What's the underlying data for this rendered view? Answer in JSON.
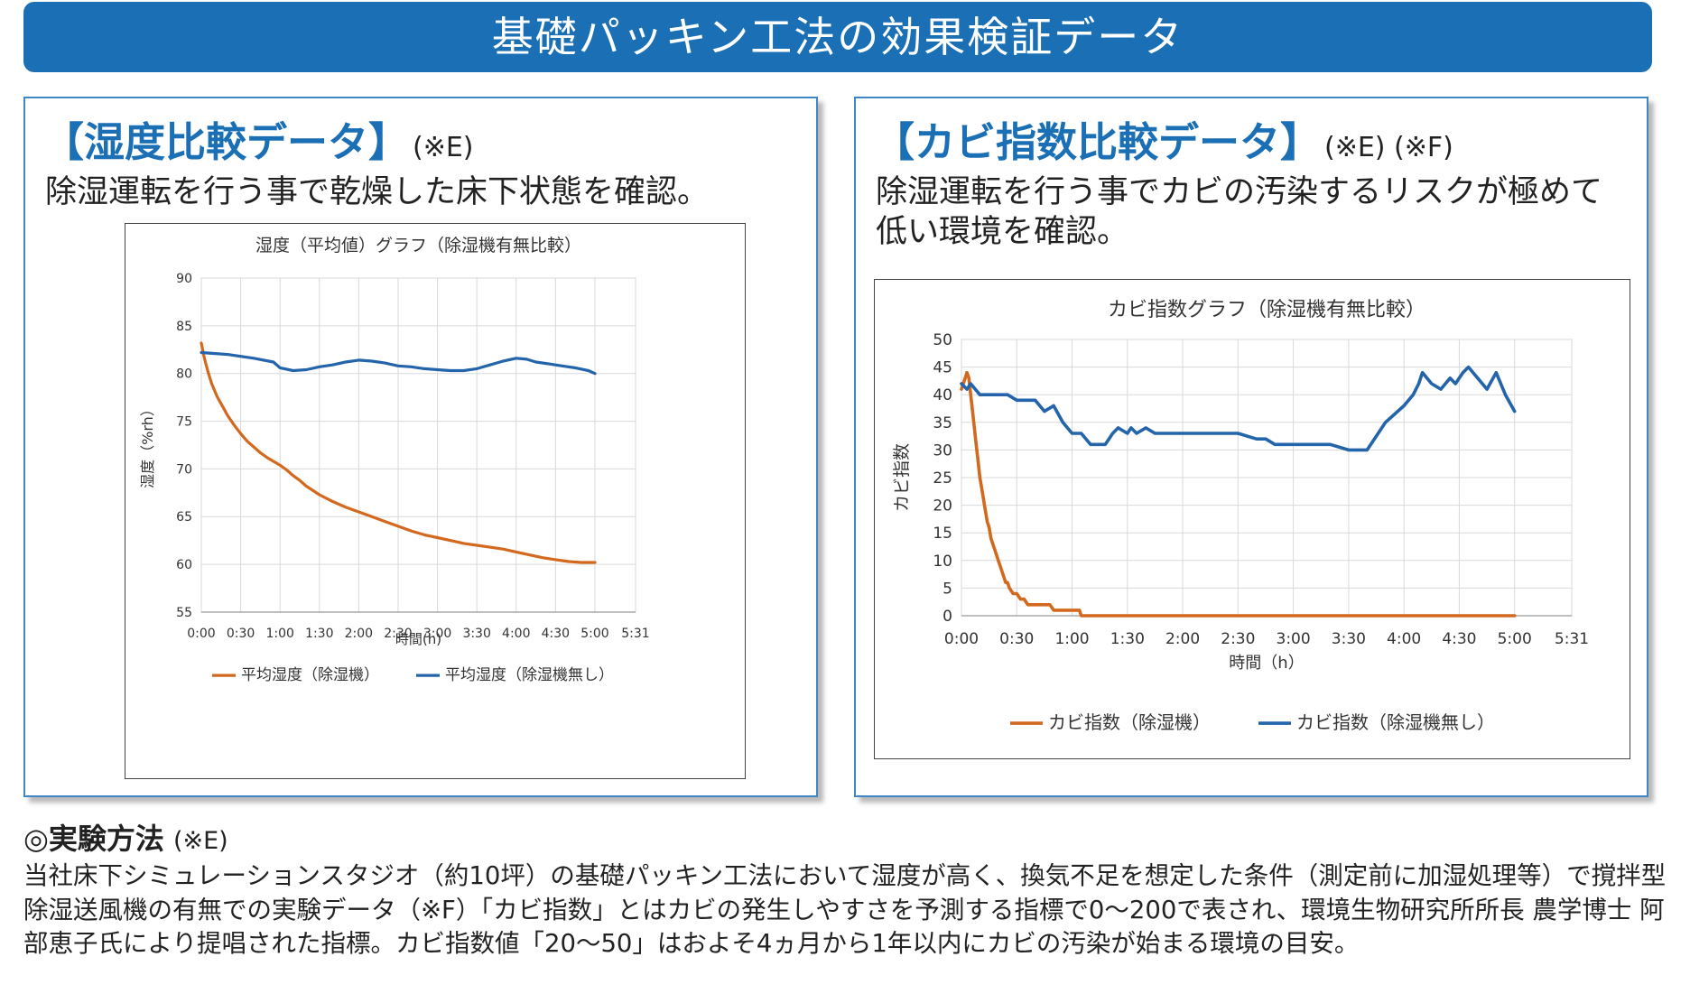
{
  "banner": {
    "title": "基礎パッキン工法の効果検証データ"
  },
  "colors": {
    "accent": "#1a6fb5",
    "orange": "#d2691e",
    "blue": "#2364aa",
    "grid": "#d9d9d9"
  },
  "left_panel": {
    "title": "【湿度比較データ】",
    "note": "(※E)",
    "description": "除湿運転を行う事で乾燥した床下状態を確認。"
  },
  "right_panel": {
    "title": "【カビ指数比較データ】",
    "note": "(※E) (※F)",
    "description": "除湿運転を行う事でカビの汚染するリスクが極めて低い環境を確認。"
  },
  "chart_data": [
    {
      "type": "line",
      "title": "湿度（平均値）グラフ（除湿機有無比較）",
      "xlabel": "時間(h)",
      "ylabel": "湿度（%rh）",
      "ylim": [
        55,
        90
      ],
      "yticks": [
        "55",
        "60",
        "65",
        "70",
        "75",
        "80",
        "85",
        "90"
      ],
      "xlim": [
        0,
        331
      ],
      "xticks": [
        "0:00",
        "0:30",
        "1:00",
        "1:30",
        "2:00",
        "2:30",
        "3:00",
        "3:30",
        "4:00",
        "4:30",
        "5:00",
        "5:31"
      ],
      "xtick_values": [
        0,
        30,
        60,
        90,
        120,
        150,
        180,
        210,
        240,
        270,
        300,
        331
      ],
      "x_unit": "minutes",
      "legend_position": "bottom",
      "series": [
        {
          "name": "平均湿度（除湿機）",
          "color": "#d2691e",
          "x": [
            0,
            2,
            5,
            8,
            12,
            16,
            20,
            25,
            30,
            35,
            40,
            45,
            50,
            55,
            60,
            65,
            70,
            75,
            80,
            90,
            100,
            110,
            120,
            130,
            140,
            150,
            160,
            170,
            180,
            190,
            200,
            210,
            220,
            230,
            240,
            250,
            260,
            270,
            280,
            290,
            300
          ],
          "y": [
            83.2,
            81.8,
            80.2,
            78.9,
            77.6,
            76.6,
            75.6,
            74.6,
            73.7,
            72.9,
            72.3,
            71.7,
            71.2,
            70.8,
            70.4,
            69.9,
            69.3,
            68.8,
            68.2,
            67.3,
            66.6,
            66.0,
            65.5,
            65.0,
            64.5,
            64.0,
            63.5,
            63.1,
            62.8,
            62.5,
            62.2,
            62.0,
            61.8,
            61.6,
            61.3,
            61.0,
            60.7,
            60.5,
            60.3,
            60.2,
            60.2
          ]
        },
        {
          "name": "平均湿度（除湿機無し）",
          "color": "#2364aa",
          "x": [
            0,
            20,
            40,
            55,
            60,
            70,
            80,
            90,
            100,
            110,
            120,
            130,
            140,
            150,
            160,
            170,
            180,
            190,
            200,
            210,
            220,
            230,
            240,
            248,
            255,
            265,
            275,
            285,
            295,
            300
          ],
          "y": [
            82.2,
            82.0,
            81.6,
            81.2,
            80.6,
            80.3,
            80.4,
            80.7,
            80.9,
            81.2,
            81.4,
            81.3,
            81.1,
            80.8,
            80.7,
            80.5,
            80.4,
            80.3,
            80.3,
            80.5,
            80.9,
            81.3,
            81.6,
            81.5,
            81.2,
            81.0,
            80.8,
            80.6,
            80.3,
            80.0
          ]
        }
      ]
    },
    {
      "type": "line",
      "title": "カビ指数グラフ（除湿機有無比較）",
      "xlabel": "時間（h）",
      "ylabel": "カビ指数",
      "ylim": [
        0,
        50
      ],
      "yticks": [
        "0",
        "5",
        "10",
        "15",
        "20",
        "25",
        "30",
        "35",
        "40",
        "45",
        "50"
      ],
      "xlim": [
        0,
        331
      ],
      "xticks": [
        "0:00",
        "0:30",
        "1:00",
        "1:30",
        "2:00",
        "2:30",
        "3:00",
        "3:30",
        "4:00",
        "4:30",
        "5:00",
        "5:31"
      ],
      "xtick_values": [
        0,
        30,
        60,
        90,
        120,
        150,
        180,
        210,
        240,
        270,
        300,
        331
      ],
      "x_unit": "minutes",
      "legend_position": "bottom",
      "series": [
        {
          "name": "カビ指数（除湿機）",
          "color": "#d2691e",
          "x": [
            0,
            2,
            3,
            4,
            5,
            6,
            7,
            8,
            9,
            10,
            11,
            12,
            13,
            14,
            15,
            16,
            17,
            18,
            19,
            20,
            21,
            22,
            23,
            24,
            25,
            26,
            28,
            30,
            32,
            34,
            36,
            40,
            45,
            48,
            50,
            55,
            60,
            64,
            65,
            70,
            80,
            100,
            150,
            200,
            250,
            300
          ],
          "y": [
            41,
            43,
            44,
            43,
            40,
            37,
            34,
            31,
            28,
            25,
            23,
            21,
            19,
            17,
            16,
            14,
            13,
            12,
            11,
            10,
            9,
            8,
            7,
            6,
            6,
            5,
            4,
            4,
            3,
            3,
            2,
            2,
            2,
            2,
            1,
            1,
            1,
            1,
            0,
            0,
            0,
            0,
            0,
            0,
            0,
            0
          ]
        },
        {
          "name": "カビ指数（除湿機無し）",
          "color": "#2364aa",
          "x": [
            0,
            3,
            5,
            10,
            15,
            20,
            25,
            30,
            35,
            40,
            45,
            50,
            55,
            60,
            65,
            70,
            75,
            78,
            80,
            82,
            85,
            90,
            92,
            95,
            100,
            105,
            110,
            120,
            130,
            150,
            160,
            165,
            170,
            180,
            190,
            200,
            210,
            215,
            220,
            230,
            240,
            245,
            248,
            250,
            255,
            260,
            265,
            268,
            270,
            272,
            275,
            280,
            285,
            290,
            295,
            300
          ],
          "y": [
            42,
            41,
            42,
            40,
            40,
            40,
            40,
            39,
            39,
            39,
            37,
            38,
            35,
            33,
            33,
            31,
            31,
            31,
            32,
            33,
            34,
            33,
            34,
            33,
            34,
            33,
            33,
            33,
            33,
            33,
            32,
            32,
            31,
            31,
            31,
            31,
            30,
            30,
            30,
            35,
            38,
            40,
            42,
            44,
            42,
            41,
            43,
            42,
            43,
            44,
            45,
            43,
            41,
            44,
            40,
            37
          ]
        }
      ]
    }
  ],
  "method": {
    "title": "◎実験方法",
    "note": "(※E)",
    "body": "当社床下シミュレーションスタジオ（約10坪）の基礎パッキン工法において湿度が高く、換気不足を想定した条件（測定前に加湿処理等）で撹拌型除湿送風機の有無での実験データ（※F）「カビ指数」とはカビの発生しやすさを予測する指標で0～200で表され、環境生物研究所所長 農学博士 阿部恵子氏により提唱された指標。カビ指数値「20～50」はおよそ4ヵ月から1年以内にカビの汚染が始まる環境の目安。"
  }
}
